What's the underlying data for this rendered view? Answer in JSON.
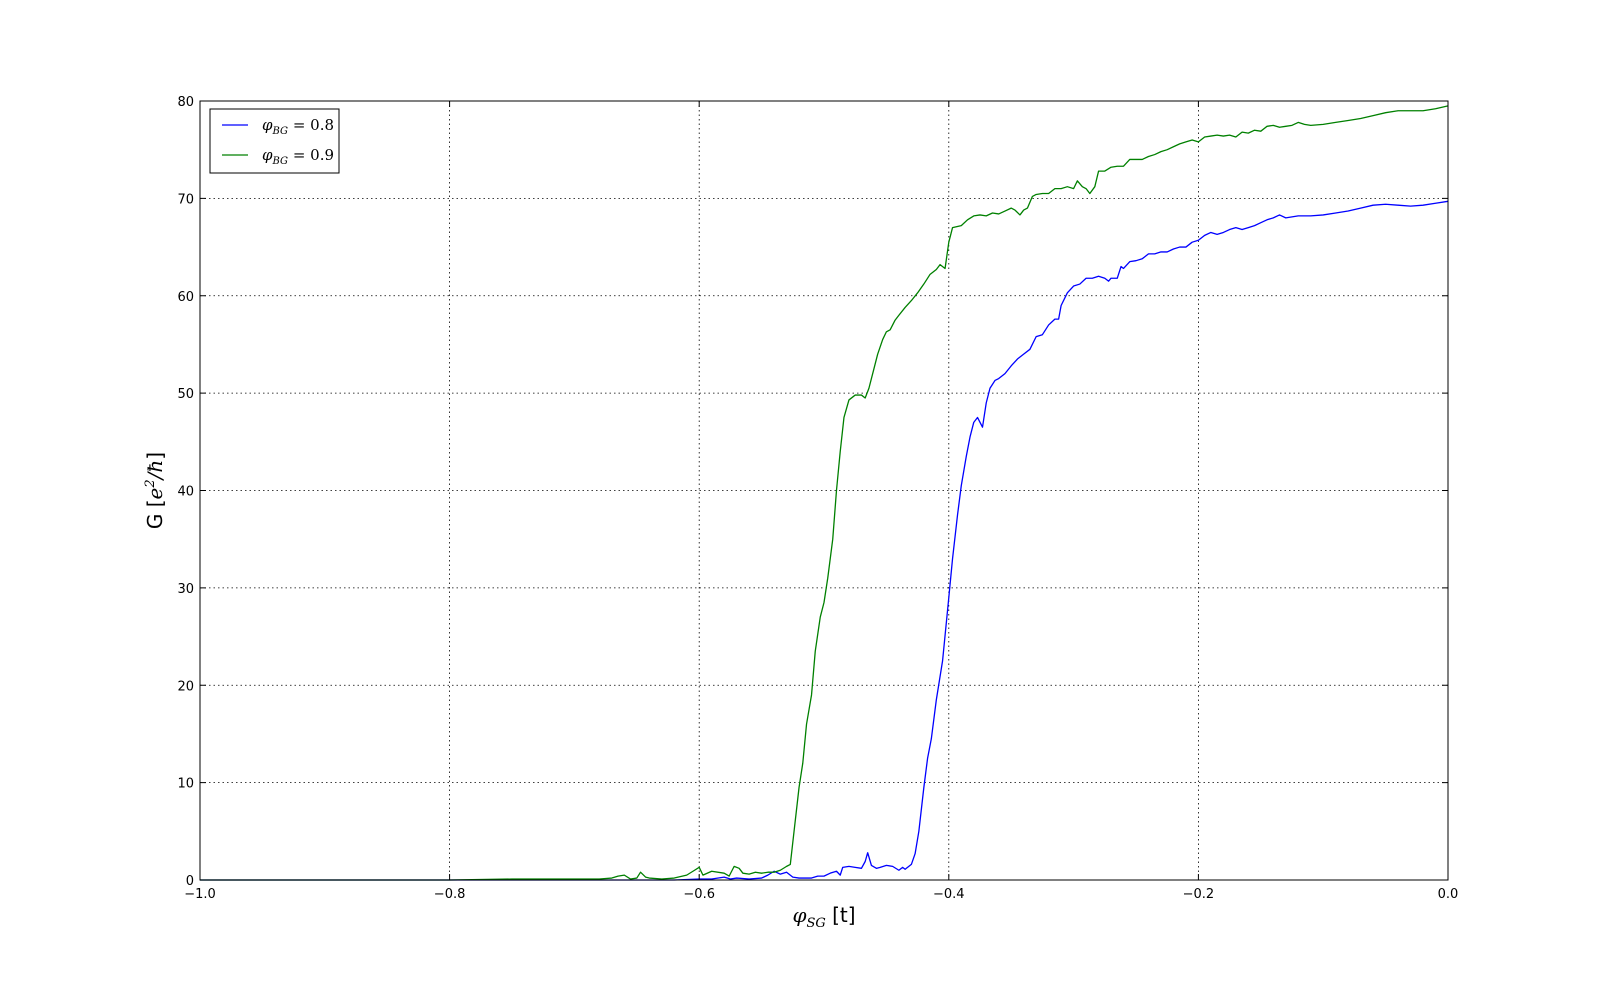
{
  "chart_data": {
    "type": "line",
    "xlabel": "φ_SG [t]",
    "ylabel": "G [e²/ħ]",
    "xlim": [
      -1.0,
      0.0
    ],
    "ylim": [
      0,
      80
    ],
    "xticks": [
      -1.0,
      -0.8,
      -0.6,
      -0.4,
      -0.2,
      0.0
    ],
    "xtick_labels": [
      "−1.0",
      "−0.8",
      "−0.6",
      "−0.4",
      "−0.2",
      "0.0"
    ],
    "yticks": [
      0,
      10,
      20,
      30,
      40,
      50,
      60,
      70,
      80
    ],
    "ytick_labels": [
      "0",
      "10",
      "20",
      "30",
      "40",
      "50",
      "60",
      "70",
      "80"
    ],
    "grid": true,
    "legend_position": "top-left",
    "series": [
      {
        "name": "φ_BG = 0.8",
        "legend_sub": "BG",
        "legend_value": "0.8",
        "color": "#0000ff",
        "points": [
          [
            -1.0,
            0
          ],
          [
            -0.8,
            0
          ],
          [
            -0.62,
            0
          ],
          [
            -0.6,
            0.1
          ],
          [
            -0.59,
            0.1
          ],
          [
            -0.58,
            0.3
          ],
          [
            -0.575,
            0.1
          ],
          [
            -0.57,
            0.2
          ],
          [
            -0.56,
            0.1
          ],
          [
            -0.55,
            0.2
          ],
          [
            -0.545,
            0.5
          ],
          [
            -0.54,
            0.9
          ],
          [
            -0.535,
            0.6
          ],
          [
            -0.53,
            0.8
          ],
          [
            -0.525,
            0.3
          ],
          [
            -0.52,
            0.2
          ],
          [
            -0.51,
            0.2
          ],
          [
            -0.505,
            0.4
          ],
          [
            -0.5,
            0.4
          ],
          [
            -0.495,
            0.7
          ],
          [
            -0.49,
            0.9
          ],
          [
            -0.487,
            0.5
          ],
          [
            -0.485,
            1.3
          ],
          [
            -0.48,
            1.4
          ],
          [
            -0.475,
            1.3
          ],
          [
            -0.47,
            1.2
          ],
          [
            -0.467,
            1.9
          ],
          [
            -0.465,
            2.8
          ],
          [
            -0.462,
            1.5
          ],
          [
            -0.458,
            1.2
          ],
          [
            -0.455,
            1.3
          ],
          [
            -0.45,
            1.5
          ],
          [
            -0.445,
            1.4
          ],
          [
            -0.44,
            1.0
          ],
          [
            -0.437,
            1.3
          ],
          [
            -0.435,
            1.1
          ],
          [
            -0.43,
            1.6
          ],
          [
            -0.427,
            2.7
          ],
          [
            -0.424,
            5.0
          ],
          [
            -0.42,
            9.5
          ],
          [
            -0.417,
            12.5
          ],
          [
            -0.414,
            14.5
          ],
          [
            -0.41,
            18.5
          ],
          [
            -0.405,
            22.5
          ],
          [
            -0.4,
            29.0
          ],
          [
            -0.397,
            33.0
          ],
          [
            -0.393,
            37.5
          ],
          [
            -0.39,
            40.5
          ],
          [
            -0.386,
            43.5
          ],
          [
            -0.383,
            45.5
          ],
          [
            -0.38,
            47.0
          ],
          [
            -0.377,
            47.5
          ],
          [
            -0.373,
            46.5
          ],
          [
            -0.37,
            49.0
          ],
          [
            -0.367,
            50.5
          ],
          [
            -0.363,
            51.3
          ],
          [
            -0.36,
            51.5
          ],
          [
            -0.355,
            52.0
          ],
          [
            -0.35,
            52.8
          ],
          [
            -0.345,
            53.5
          ],
          [
            -0.34,
            54.0
          ],
          [
            -0.335,
            54.5
          ],
          [
            -0.33,
            55.8
          ],
          [
            -0.325,
            56.0
          ],
          [
            -0.32,
            57.0
          ],
          [
            -0.315,
            57.6
          ],
          [
            -0.312,
            57.6
          ],
          [
            -0.31,
            59.0
          ],
          [
            -0.305,
            60.3
          ],
          [
            -0.3,
            61.0
          ],
          [
            -0.295,
            61.2
          ],
          [
            -0.29,
            61.8
          ],
          [
            -0.285,
            61.8
          ],
          [
            -0.28,
            62.0
          ],
          [
            -0.275,
            61.8
          ],
          [
            -0.272,
            61.5
          ],
          [
            -0.27,
            61.8
          ],
          [
            -0.265,
            61.8
          ],
          [
            -0.262,
            63.0
          ],
          [
            -0.26,
            62.8
          ],
          [
            -0.255,
            63.5
          ],
          [
            -0.25,
            63.6
          ],
          [
            -0.245,
            63.8
          ],
          [
            -0.24,
            64.3
          ],
          [
            -0.235,
            64.3
          ],
          [
            -0.23,
            64.5
          ],
          [
            -0.225,
            64.5
          ],
          [
            -0.22,
            64.8
          ],
          [
            -0.215,
            65.0
          ],
          [
            -0.21,
            65.0
          ],
          [
            -0.205,
            65.5
          ],
          [
            -0.2,
            65.7
          ],
          [
            -0.195,
            66.2
          ],
          [
            -0.19,
            66.5
          ],
          [
            -0.185,
            66.3
          ],
          [
            -0.18,
            66.5
          ],
          [
            -0.175,
            66.8
          ],
          [
            -0.17,
            67.0
          ],
          [
            -0.165,
            66.8
          ],
          [
            -0.16,
            67.0
          ],
          [
            -0.155,
            67.2
          ],
          [
            -0.15,
            67.5
          ],
          [
            -0.145,
            67.8
          ],
          [
            -0.14,
            68.0
          ],
          [
            -0.135,
            68.3
          ],
          [
            -0.13,
            68.0
          ],
          [
            -0.12,
            68.2
          ],
          [
            -0.11,
            68.2
          ],
          [
            -0.1,
            68.3
          ],
          [
            -0.09,
            68.5
          ],
          [
            -0.08,
            68.7
          ],
          [
            -0.07,
            69.0
          ],
          [
            -0.06,
            69.3
          ],
          [
            -0.05,
            69.4
          ],
          [
            -0.04,
            69.3
          ],
          [
            -0.03,
            69.2
          ],
          [
            -0.02,
            69.3
          ],
          [
            -0.01,
            69.5
          ],
          [
            0.0,
            69.7
          ]
        ]
      },
      {
        "name": "φ_BG = 0.9",
        "legend_sub": "BG",
        "legend_value": "0.9",
        "color": "#008000",
        "points": [
          [
            -1.0,
            0
          ],
          [
            -0.8,
            0
          ],
          [
            -0.75,
            0.1
          ],
          [
            -0.72,
            0.1
          ],
          [
            -0.7,
            0.1
          ],
          [
            -0.68,
            0.1
          ],
          [
            -0.67,
            0.2
          ],
          [
            -0.665,
            0.4
          ],
          [
            -0.66,
            0.5
          ],
          [
            -0.655,
            0.1
          ],
          [
            -0.65,
            0.2
          ],
          [
            -0.647,
            0.8
          ],
          [
            -0.643,
            0.3
          ],
          [
            -0.64,
            0.2
          ],
          [
            -0.63,
            0.1
          ],
          [
            -0.62,
            0.2
          ],
          [
            -0.61,
            0.5
          ],
          [
            -0.605,
            0.9
          ],
          [
            -0.6,
            1.3
          ],
          [
            -0.597,
            0.5
          ],
          [
            -0.59,
            0.9
          ],
          [
            -0.58,
            0.7
          ],
          [
            -0.576,
            0.4
          ],
          [
            -0.572,
            1.4
          ],
          [
            -0.568,
            1.2
          ],
          [
            -0.565,
            0.7
          ],
          [
            -0.56,
            0.6
          ],
          [
            -0.555,
            0.8
          ],
          [
            -0.55,
            0.7
          ],
          [
            -0.545,
            0.8
          ],
          [
            -0.54,
            0.8
          ],
          [
            -0.535,
            1.0
          ],
          [
            -0.53,
            1.4
          ],
          [
            -0.527,
            1.6
          ],
          [
            -0.524,
            5.0
          ],
          [
            -0.52,
            9.5
          ],
          [
            -0.517,
            12.0
          ],
          [
            -0.514,
            16.0
          ],
          [
            -0.51,
            19.0
          ],
          [
            -0.507,
            23.5
          ],
          [
            -0.503,
            27.0
          ],
          [
            -0.5,
            28.5
          ],
          [
            -0.497,
            31.0
          ],
          [
            -0.493,
            35.0
          ],
          [
            -0.49,
            40.0
          ],
          [
            -0.487,
            44.0
          ],
          [
            -0.484,
            47.5
          ],
          [
            -0.48,
            49.3
          ],
          [
            -0.475,
            49.8
          ],
          [
            -0.47,
            49.8
          ],
          [
            -0.467,
            49.5
          ],
          [
            -0.464,
            50.5
          ],
          [
            -0.46,
            52.5
          ],
          [
            -0.457,
            54.0
          ],
          [
            -0.453,
            55.5
          ],
          [
            -0.45,
            56.3
          ],
          [
            -0.447,
            56.5
          ],
          [
            -0.443,
            57.5
          ],
          [
            -0.44,
            58.0
          ],
          [
            -0.435,
            58.8
          ],
          [
            -0.43,
            59.5
          ],
          [
            -0.425,
            60.3
          ],
          [
            -0.42,
            61.2
          ],
          [
            -0.415,
            62.2
          ],
          [
            -0.41,
            62.7
          ],
          [
            -0.407,
            63.2
          ],
          [
            -0.403,
            62.8
          ],
          [
            -0.4,
            65.5
          ],
          [
            -0.397,
            67.0
          ],
          [
            -0.39,
            67.2
          ],
          [
            -0.385,
            67.8
          ],
          [
            -0.38,
            68.2
          ],
          [
            -0.375,
            68.3
          ],
          [
            -0.37,
            68.2
          ],
          [
            -0.365,
            68.5
          ],
          [
            -0.36,
            68.4
          ],
          [
            -0.355,
            68.7
          ],
          [
            -0.35,
            69.0
          ],
          [
            -0.347,
            68.8
          ],
          [
            -0.343,
            68.3
          ],
          [
            -0.34,
            68.8
          ],
          [
            -0.337,
            69.0
          ],
          [
            -0.333,
            70.2
          ],
          [
            -0.33,
            70.4
          ],
          [
            -0.325,
            70.5
          ],
          [
            -0.32,
            70.5
          ],
          [
            -0.315,
            71.0
          ],
          [
            -0.31,
            71.0
          ],
          [
            -0.305,
            71.2
          ],
          [
            -0.3,
            71.0
          ],
          [
            -0.297,
            71.8
          ],
          [
            -0.293,
            71.2
          ],
          [
            -0.29,
            71.0
          ],
          [
            -0.287,
            70.5
          ],
          [
            -0.283,
            71.2
          ],
          [
            -0.28,
            72.8
          ],
          [
            -0.275,
            72.8
          ],
          [
            -0.27,
            73.2
          ],
          [
            -0.265,
            73.3
          ],
          [
            -0.26,
            73.3
          ],
          [
            -0.255,
            74.0
          ],
          [
            -0.25,
            74.0
          ],
          [
            -0.245,
            74.0
          ],
          [
            -0.24,
            74.3
          ],
          [
            -0.235,
            74.5
          ],
          [
            -0.23,
            74.8
          ],
          [
            -0.225,
            75.0
          ],
          [
            -0.22,
            75.3
          ],
          [
            -0.215,
            75.6
          ],
          [
            -0.21,
            75.8
          ],
          [
            -0.205,
            76.0
          ],
          [
            -0.2,
            75.8
          ],
          [
            -0.195,
            76.3
          ],
          [
            -0.19,
            76.4
          ],
          [
            -0.185,
            76.5
          ],
          [
            -0.18,
            76.4
          ],
          [
            -0.175,
            76.5
          ],
          [
            -0.17,
            76.3
          ],
          [
            -0.165,
            76.8
          ],
          [
            -0.16,
            76.7
          ],
          [
            -0.155,
            77.0
          ],
          [
            -0.15,
            76.9
          ],
          [
            -0.145,
            77.4
          ],
          [
            -0.14,
            77.5
          ],
          [
            -0.135,
            77.3
          ],
          [
            -0.13,
            77.4
          ],
          [
            -0.125,
            77.5
          ],
          [
            -0.12,
            77.8
          ],
          [
            -0.115,
            77.6
          ],
          [
            -0.11,
            77.5
          ],
          [
            -0.1,
            77.6
          ],
          [
            -0.09,
            77.8
          ],
          [
            -0.08,
            78.0
          ],
          [
            -0.07,
            78.2
          ],
          [
            -0.06,
            78.5
          ],
          [
            -0.05,
            78.8
          ],
          [
            -0.04,
            79.0
          ],
          [
            -0.03,
            79.0
          ],
          [
            -0.02,
            79.0
          ],
          [
            -0.01,
            79.2
          ],
          [
            0.0,
            79.5
          ]
        ]
      }
    ]
  }
}
